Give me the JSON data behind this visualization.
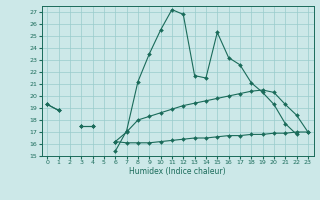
{
  "xlabel": "Humidex (Indice chaleur)",
  "x_values": [
    0,
    1,
    2,
    3,
    4,
    5,
    6,
    7,
    8,
    9,
    10,
    11,
    12,
    13,
    14,
    15,
    16,
    17,
    18,
    19,
    20,
    21,
    22,
    23
  ],
  "y_jagged": [
    19.3,
    18.8,
    null,
    null,
    null,
    null,
    15.4,
    17.1,
    21.2,
    23.5,
    25.5,
    27.2,
    26.8,
    21.7,
    21.5,
    25.3,
    23.2,
    22.6,
    21.1,
    20.3,
    19.3,
    17.7,
    16.8,
    null
  ],
  "y_mid": [
    19.3,
    18.8,
    null,
    17.5,
    17.5,
    null,
    16.2,
    17.0,
    18.0,
    18.3,
    18.6,
    18.9,
    19.2,
    19.4,
    19.6,
    19.8,
    20.0,
    20.2,
    20.4,
    20.5,
    20.3,
    19.3,
    18.4,
    17.0
  ],
  "y_low": [
    null,
    null,
    null,
    17.5,
    17.5,
    null,
    16.2,
    16.1,
    16.1,
    16.1,
    16.2,
    16.3,
    16.4,
    16.5,
    16.5,
    16.6,
    16.7,
    16.7,
    16.8,
    16.8,
    16.9,
    16.9,
    17.0,
    17.0
  ],
  "bg_color": "#cce8e8",
  "grid_color": "#99cccc",
  "line_color": "#1a6b5a",
  "ylim": [
    15,
    27.5
  ],
  "xlim": [
    -0.5,
    23.5
  ],
  "yticks": [
    15,
    16,
    17,
    18,
    19,
    20,
    21,
    22,
    23,
    24,
    25,
    26,
    27
  ],
  "xticks": [
    0,
    1,
    2,
    3,
    4,
    5,
    6,
    7,
    8,
    9,
    10,
    11,
    12,
    13,
    14,
    15,
    16,
    17,
    18,
    19,
    20,
    21,
    22,
    23
  ]
}
